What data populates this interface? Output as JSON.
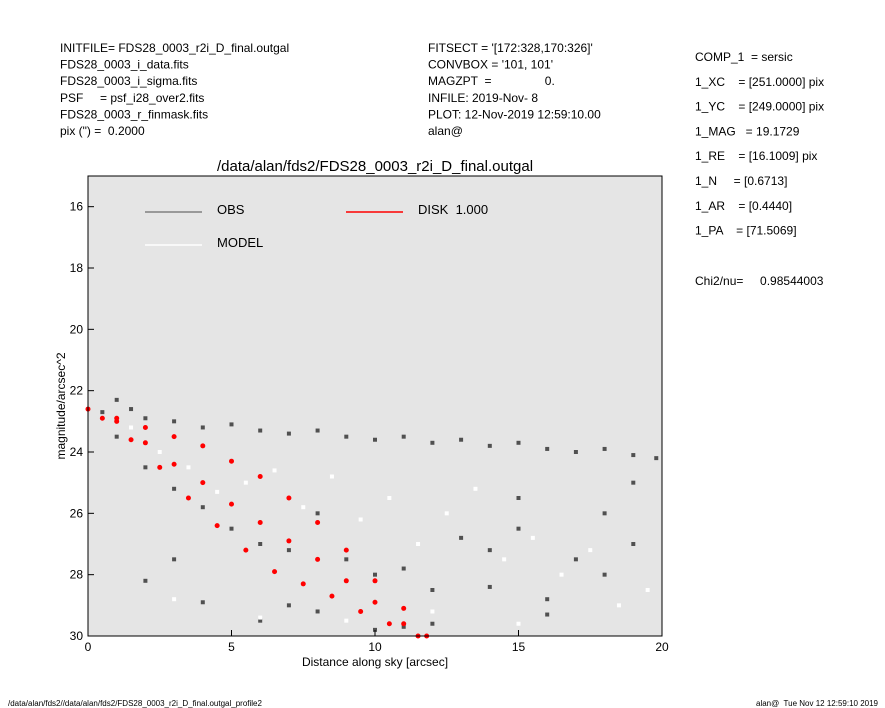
{
  "header": {
    "left": [
      "INITFILE= FDS28_0003_r2i_D_final.outgal",
      "FDS28_0003_i_data.fits",
      "FDS28_0003_i_sigma.fits",
      "PSF     = psf_i28_over2.fits",
      "FDS28_0003_r_finmask.fits",
      "pix (\") =  0.2000"
    ],
    "middle": [
      "FITSECT = '[172:328,170:326]'",
      "CONVBOX = '101, 101'",
      "MAGZPT  =                0.",
      "INFILE: 2019-Nov- 8",
      "PLOT: 12-Nov-2019 12:59:10.00",
      "alan@"
    ],
    "right": [
      "COMP_1  = sersic",
      "1_XC    = [251.0000] pix",
      "1_YC    = [249.0000] pix",
      "1_MAG   = 19.1729",
      "1_RE    = [16.1009] pix",
      "1_N     = [0.6713]",
      "1_AR    = [0.4440]",
      "1_PA    = [71.5069]"
    ],
    "chi2": "Chi2/nu=     0.98544003"
  },
  "footer": {
    "left": "/data/alan/fds2//data/alan/fds2/FDS28_0003_r2i_D_final.outgal_profile2",
    "right": "alan@  Tue Nov 12 12:59:10 2019"
  },
  "chart_data": {
    "type": "scatter",
    "title": "/data/alan/fds2/FDS28_0003_r2i_D_final.outgal",
    "x_label": "Distance along sky [arcsec]",
    "y_label": "magnitude/arcsec^2",
    "xlim": [
      0,
      20
    ],
    "xticks": [
      0,
      5,
      10,
      15,
      20
    ],
    "ylim": [
      30,
      15
    ],
    "yticks": [
      16,
      18,
      20,
      22,
      24,
      26,
      28,
      30
    ],
    "y_inverted": true,
    "background": "#e5e5e5",
    "series": [
      {
        "name": "OBS",
        "color": "#505050",
        "x": [
          0.5,
          1,
          1.5,
          2,
          3,
          4,
          5,
          6,
          7,
          8,
          9,
          10,
          11,
          12,
          13,
          14,
          15,
          16,
          17,
          18,
          19,
          19.8,
          1,
          2,
          3,
          4,
          5,
          6,
          7,
          8,
          9,
          10,
          11,
          12,
          13,
          14,
          15,
          16,
          17,
          18,
          19,
          2,
          4,
          6,
          8,
          10,
          12,
          14,
          16,
          18,
          3,
          7,
          11,
          15,
          19
        ],
        "values": [
          22.7,
          22.3,
          22.6,
          22.9,
          23.0,
          23.2,
          23.1,
          23.3,
          23.4,
          23.3,
          23.5,
          23.6,
          23.5,
          23.7,
          23.6,
          23.8,
          23.7,
          23.9,
          24.0,
          23.9,
          24.1,
          24.2,
          23.5,
          24.5,
          25.2,
          25.8,
          26.5,
          27.0,
          27.2,
          26.0,
          27.5,
          28.0,
          27.8,
          28.5,
          26.8,
          27.2,
          26.5,
          28.8,
          27.5,
          26.0,
          27.0,
          28.2,
          28.9,
          29.5,
          29.2,
          29.8,
          29.6,
          28.4,
          29.3,
          28.0,
          27.5,
          29.0,
          29.7,
          25.5,
          25.0
        ]
      },
      {
        "name": "MODEL",
        "color": "#ffffff",
        "x": [
          1.5,
          2.5,
          3.5,
          4.5,
          5.5,
          6.5,
          7.5,
          8.5,
          9.5,
          10.5,
          11.5,
          12.5,
          13.5,
          14.5,
          15.5,
          16.5,
          17.5,
          18.5,
          19.5,
          3,
          6,
          9,
          12,
          15
        ],
        "values": [
          23.2,
          24.0,
          24.5,
          25.3,
          25.0,
          24.6,
          25.8,
          24.8,
          26.2,
          25.5,
          27.0,
          26.0,
          25.2,
          27.5,
          26.8,
          28.0,
          27.2,
          29.0,
          28.5,
          28.8,
          29.4,
          29.5,
          29.2,
          29.6
        ]
      },
      {
        "name": "DISK  1.000",
        "color": "#ff0000",
        "x": [
          0,
          1,
          2,
          3,
          4,
          5,
          6,
          7,
          8,
          9,
          10,
          11,
          11.8,
          0.5,
          1.5,
          2.5,
          3.5,
          4.5,
          5.5,
          6.5,
          7.5,
          8.5,
          9.5,
          10.5,
          11.5,
          1,
          2,
          3,
          4,
          5,
          6,
          7,
          8,
          9,
          10,
          11
        ],
        "values": [
          22.6,
          22.9,
          23.2,
          23.5,
          23.8,
          24.3,
          24.8,
          25.5,
          26.3,
          27.2,
          28.2,
          29.1,
          30,
          22.9,
          23.6,
          24.5,
          25.5,
          26.4,
          27.2,
          27.9,
          28.3,
          28.7,
          29.2,
          29.6,
          30.0,
          23.0,
          23.7,
          24.4,
          25.0,
          25.7,
          26.3,
          26.9,
          27.5,
          28.2,
          28.9,
          29.6
        ]
      }
    ]
  }
}
